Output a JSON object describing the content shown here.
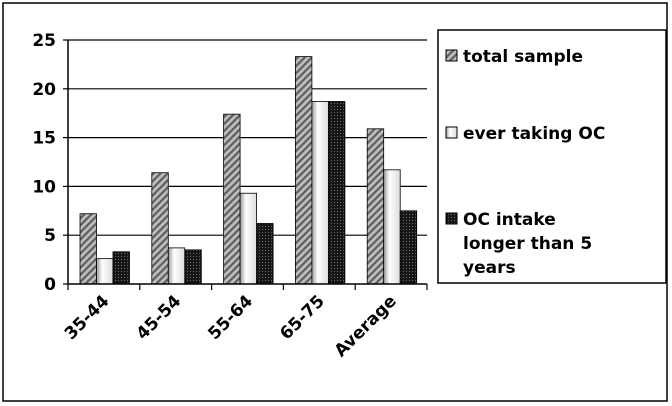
{
  "chart_data": {
    "type": "bar",
    "categories": [
      "35-44",
      "45-54",
      "55-64",
      "65-75",
      "Average"
    ],
    "series": [
      {
        "name": "total sample",
        "values": [
          7.2,
          11.4,
          17.4,
          23.3,
          15.9
        ],
        "color": "#8c8c8c",
        "pattern": "diagonal-hatch"
      },
      {
        "name": "ever taking OC",
        "values": [
          2.6,
          3.7,
          9.3,
          18.7,
          11.7
        ],
        "color": "#e8e8e8",
        "pattern": "vertical-gradient"
      },
      {
        "name": "OC intake longer than 5 years",
        "values": [
          3.3,
          3.5,
          6.2,
          18.7,
          7.5
        ],
        "color": "#1f1f1f",
        "pattern": "dots"
      }
    ],
    "legend_lines": [
      [
        "total sample"
      ],
      [
        "ever taking OC"
      ],
      [
        "OC intake",
        "longer than 5",
        "years"
      ]
    ],
    "ylim": [
      0,
      25
    ],
    "yticks": [
      0,
      5,
      10,
      15,
      20,
      25
    ],
    "grid": true,
    "legend_placement": "right",
    "title": "",
    "xlabel": "",
    "ylabel": ""
  }
}
